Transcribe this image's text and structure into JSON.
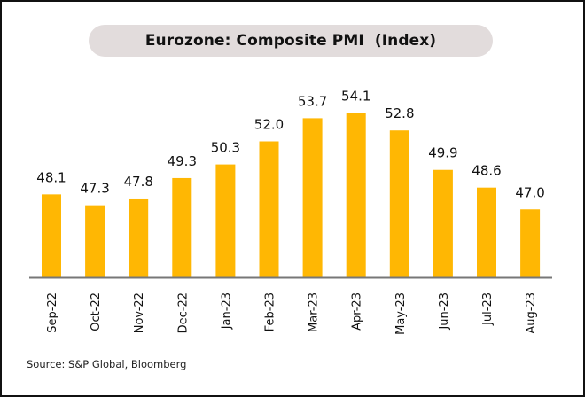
{
  "chart_data": {
    "type": "bar",
    "title": "Eurozone: Composite PMI  (Index)",
    "xlabel": "",
    "ylabel": "",
    "categories": [
      "Sep-22",
      "Oct-22",
      "Nov-22",
      "Dec-22",
      "Jan-23",
      "Feb-23",
      "Mar-23",
      "Apr-23",
      "May-23",
      "Jun-23",
      "Jul-23",
      "Aug-23"
    ],
    "values": [
      48.1,
      47.3,
      47.8,
      49.3,
      50.3,
      52.0,
      53.7,
      54.1,
      52.8,
      49.9,
      48.6,
      47.0
    ],
    "value_labels": [
      "48.1",
      "47.3",
      "47.8",
      "49.3",
      "50.3",
      "52.0",
      "53.7",
      "54.1",
      "52.8",
      "49.9",
      "48.6",
      "47.0"
    ],
    "ylim": [
      42,
      56
    ],
    "grid": false,
    "legend": "none",
    "bar_color": "#ffb703",
    "axis_color": "#777777",
    "source": "Source: S&P Global, Bloomberg"
  }
}
